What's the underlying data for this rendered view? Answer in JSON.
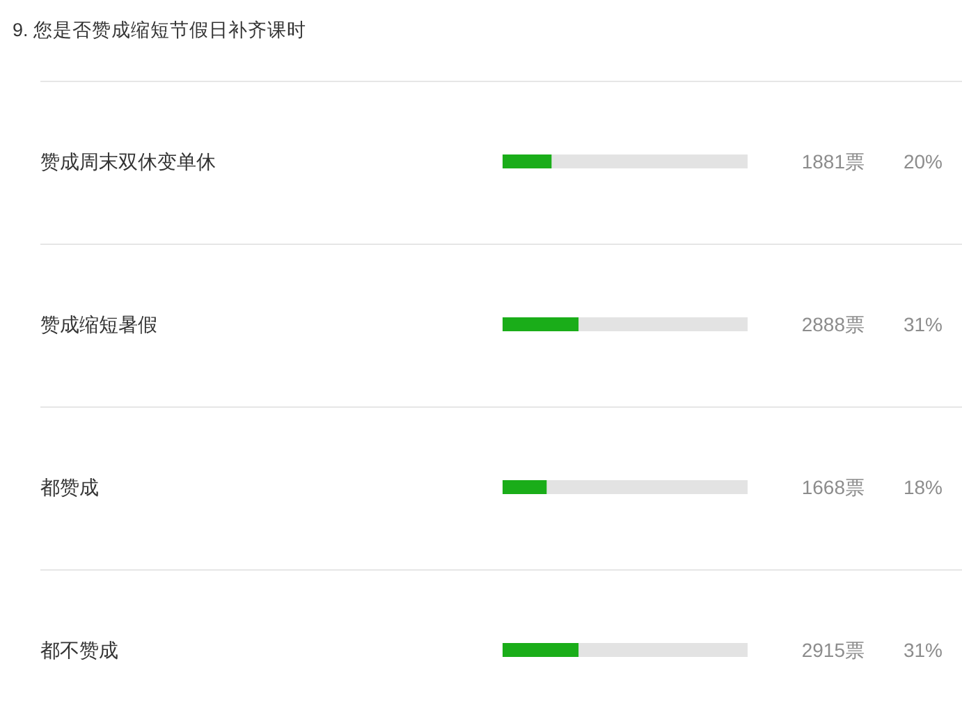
{
  "chart_data": {
    "type": "bar",
    "orientation": "horizontal",
    "title": "9. 您是否赞成缩短节假日补齐课时",
    "categories": [
      "赞成周末双休变单休",
      "赞成缩短暑假",
      "都赞成",
      "都不赞成"
    ],
    "values": [
      20,
      31,
      18,
      31
    ],
    "value_labels": [
      "20%",
      "31%",
      "18%",
      "31%"
    ],
    "color": "#1aad19",
    "xlim": [
      0,
      100
    ],
    "tick_labels": "y",
    "annotations": [
      "1881票",
      "2888票",
      "1668票",
      "2915票"
    ]
  }
}
